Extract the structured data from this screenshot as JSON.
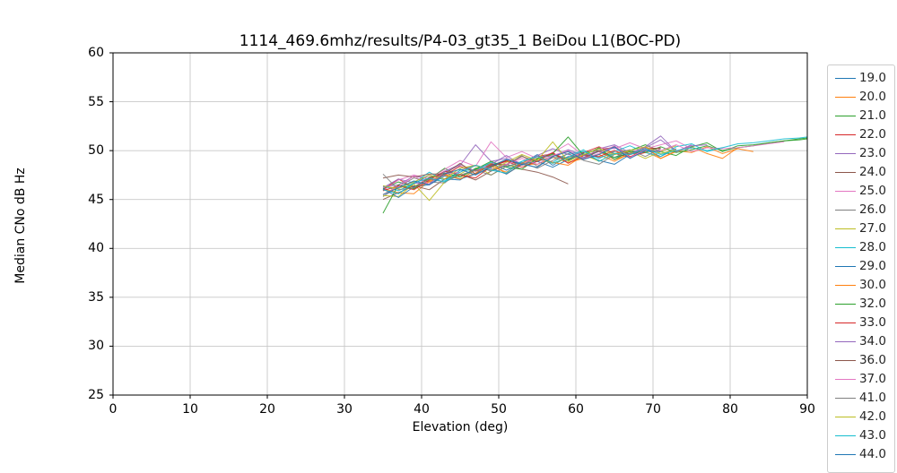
{
  "title": "1114_469.6mhz/results/P4-03_gt35_1 BeiDou L1(BOC-PD)",
  "axes": {
    "xlabel": "Elevation (deg)",
    "ylabel": "Median CNo dB Hz",
    "x_ticks": [
      0,
      10,
      20,
      30,
      40,
      50,
      60,
      70,
      80,
      90
    ],
    "y_ticks": [
      25,
      30,
      35,
      40,
      45,
      50,
      55,
      60
    ]
  },
  "chart_data": {
    "type": "line",
    "title": "1114_469.6mhz/results/P4-03_gt35_1 BeiDou L1(BOC-PD)",
    "xlabel": "Elevation (deg)",
    "ylabel": "Median CNo dB Hz",
    "xlim": [
      0,
      90
    ],
    "ylim": [
      25,
      60
    ],
    "grid": true,
    "grid_color": "#c8c8c8",
    "legend_position": "outside-right",
    "x_start": 35,
    "x_step": 2,
    "series": [
      {
        "name": "19.0",
        "color": "#1f77b4",
        "values": [
          46.0,
          45.6,
          46.6,
          47.5,
          47.1,
          47.0,
          48.1,
          48.7,
          48.0,
          48.7,
          49.6,
          48.5,
          49.4,
          49.3,
          49.9,
          49.3,
          49.7,
          50.1,
          49.4,
          50.2
        ]
      },
      {
        "name": "20.0",
        "color": "#ff7f0e",
        "values": [
          46.1,
          45.7,
          45.6,
          46.9,
          47.6,
          47.1,
          47.7,
          48.7,
          47.6,
          48.6,
          48.6,
          49.3,
          48.8,
          49.2,
          49.6,
          48.9,
          49.7,
          49.9,
          49.2,
          49.9,
          50.4,
          49.7,
          49.2,
          50.3
        ]
      },
      {
        "name": "21.0",
        "color": "#2ca02c",
        "values": [
          46.1,
          46.8,
          46.3,
          47.1,
          48.2,
          47.3,
          48.2,
          48.3,
          49.0,
          48.6,
          49.1,
          49.6,
          49.0,
          49.8,
          50.0,
          49.3,
          50.0,
          50.6,
          49.9,
          49.5,
          50.4,
          50.8,
          49.9,
          50.5,
          50.6,
          50.8,
          51.0,
          51.2,
          51.3
        ]
      },
      {
        "name": "22.0",
        "color": "#d62728",
        "values": [
          46.0,
          47.1,
          46.2,
          47.3,
          47.5,
          48.4,
          47.9,
          48.5,
          49.0,
          48.5,
          49.4,
          49.7,
          49.1,
          49.8,
          50.4,
          49.7,
          49.3,
          50.3,
          50.2
        ]
      },
      {
        "name": "23.0",
        "color": "#9467bd",
        "values": [
          46.3,
          46.5,
          47.4,
          47.1,
          47.8,
          48.5,
          50.6,
          48.9,
          49.2,
          48.7,
          49.5,
          50.2,
          49.6,
          49.2,
          50.2,
          50.6,
          49.8,
          50.3,
          51.1,
          49.9,
          50.6
        ]
      },
      {
        "name": "24.0",
        "color": "#8c564b",
        "values": [
          45.0,
          45.7,
          46.4,
          46.0,
          47.1,
          47.6,
          47.0,
          47.9,
          48.6,
          48.1,
          47.8,
          47.3,
          46.6
        ]
      },
      {
        "name": "25.0",
        "color": "#e377c2",
        "values": [
          45.9,
          47.0,
          47.5,
          47.1,
          48.1,
          49.0,
          48.4,
          50.9,
          49.3,
          49.9,
          49.2,
          49.8,
          50.7,
          49.5,
          50.3,
          50.2,
          50.8,
          50.2,
          50.6,
          51.0,
          50.2
        ]
      },
      {
        "name": "26.0",
        "color": "#7f7f7f",
        "values": [
          45.3,
          46.3,
          47.2,
          46.8,
          46.7,
          48.0,
          48.5,
          47.9,
          48.5,
          49.5,
          48.4,
          49.3,
          49.3,
          49.9,
          49.3,
          49.7,
          50.1,
          49.4,
          50.2
        ]
      },
      {
        "name": "27.0",
        "color": "#bcbd22",
        "values": [
          45.4,
          45.3,
          46.6,
          44.9,
          46.8,
          47.6,
          48.5,
          47.5,
          48.4,
          48.5,
          49.2,
          48.7,
          49.2,
          49.6,
          48.9,
          49.7,
          49.9,
          49.2,
          49.9,
          50.5
        ]
      },
      {
        "name": "28.0",
        "color": "#17becf",
        "values": [
          46.4,
          45.9,
          46.7,
          47.8,
          46.9,
          48.0,
          48.0,
          48.8,
          48.3,
          48.9,
          49.4,
          48.8,
          49.7,
          49.9,
          49.2,
          49.9,
          50.5,
          49.8,
          49.4,
          50.4,
          50.7,
          49.9,
          50.3,
          50.7,
          50.8,
          51.0,
          51.2,
          51.3,
          51.4
        ]
      },
      {
        "name": "29.0",
        "color": "#1f77b4",
        "values": [
          46.1,
          45.2,
          46.3,
          46.5,
          47.4,
          47.1,
          47.6,
          48.2,
          47.6,
          48.6,
          48.9,
          48.3,
          49.1,
          49.7,
          49.0,
          48.6,
          49.6,
          50.0
        ]
      },
      {
        "name": "30.0",
        "color": "#ff7f0e",
        "values": [
          45.5,
          46.4,
          46.1,
          46.8,
          47.5,
          47.1,
          48.0,
          48.4,
          47.8,
          48.7,
          49.4,
          48.8,
          48.5,
          49.5,
          49.9,
          49.1,
          49.6,
          50.4,
          49.2,
          50.0,
          49.8,
          50.4,
          49.7,
          50.2,
          49.9
        ]
      },
      {
        "name": "32.0",
        "color": "#2ca02c",
        "values": [
          43.6,
          46.5,
          46.1,
          47.2,
          47.7,
          47.3,
          48.1,
          48.9,
          48.3,
          48.1,
          49.2,
          49.7,
          51.4,
          49.5,
          50.3,
          49.1,
          49.9,
          49.8,
          50.4,
          49.8,
          50.1,
          50.5,
          50.0,
          50.3,
          50.5,
          50.8,
          51.0,
          51.1,
          51.2
        ]
      },
      {
        "name": "33.0",
        "color": "#d62728",
        "values": [
          45.9,
          46.4,
          46.0,
          47.0,
          47.9,
          47.5,
          47.2,
          48.4,
          48.9,
          48.3,
          48.9,
          49.8,
          48.7,
          49.5,
          49.4,
          50.0,
          49.4,
          49.8
        ]
      },
      {
        "name": "34.0",
        "color": "#9467bd",
        "values": [
          46.2,
          47.1,
          46.7,
          46.6,
          47.9,
          48.6,
          47.9,
          48.6,
          49.5,
          48.5,
          49.4,
          49.4,
          50.1,
          49.5,
          49.9,
          50.3,
          49.6,
          50.4,
          51.5,
          49.9,
          50.5,
          50.6
        ]
      },
      {
        "name": "36.0",
        "color": "#8c564b",
        "values": [
          47.2,
          47.5,
          47.3,
          47.6,
          47.6,
          48.7,
          47.6,
          48.6,
          48.6,
          49.4,
          48.9,
          49.4,
          49.9,
          49.2,
          50.0,
          50.4,
          49.6,
          50.1,
          50.3
        ]
      },
      {
        "name": "37.0",
        "color": "#e377c2",
        "values": [
          45.5,
          46.3,
          47.4,
          46.5,
          47.6,
          47.8,
          48.5,
          48.1,
          48.6,
          49.2,
          48.6,
          49.5,
          50.0,
          49.2,
          49.7,
          50.5,
          49.3,
          50.1,
          50.0,
          50.6,
          49.9,
          50.3,
          50.2,
          50.3,
          50.5,
          50.7,
          50.9
        ]
      },
      {
        "name": "41.0",
        "color": "#7f7f7f",
        "values": [
          47.6,
          46.0,
          46.2,
          47.1,
          46.8,
          47.5,
          48.0,
          47.5,
          48.4,
          48.8,
          48.2,
          49.0,
          49.7,
          49.0,
          48.6,
          49.6,
          50.0
        ]
      },
      {
        "name": "42.0",
        "color": "#bcbd22",
        "values": [
          46.4,
          46.1,
          46.8,
          47.5,
          47.1,
          48.2,
          48.5,
          48.0,
          48.8,
          49.6,
          49.0,
          50.9,
          48.9,
          49.6,
          50.2,
          49.6,
          50.0,
          50.4,
          49.7,
          50.1
        ]
      },
      {
        "name": "43.0",
        "color": "#17becf",
        "values": [
          46.0,
          45.6,
          46.7,
          47.2,
          46.8,
          47.8,
          48.5,
          48.0,
          47.7,
          48.9,
          49.4,
          48.7,
          49.3,
          50.1,
          48.9,
          49.7,
          49.6,
          50.2,
          49.6,
          50.0,
          50.3,
          50.0,
          50.3
        ]
      },
      {
        "name": "44.0",
        "color": "#1f77b4",
        "values": [
          45.5,
          46.2,
          46.9,
          46.5,
          47.6,
          48.1,
          47.5,
          48.4,
          49.1,
          48.6,
          48.3,
          49.4,
          49.9,
          49.1,
          49.6,
          50.4,
          49.2,
          50.0,
          49.9
        ]
      }
    ]
  }
}
